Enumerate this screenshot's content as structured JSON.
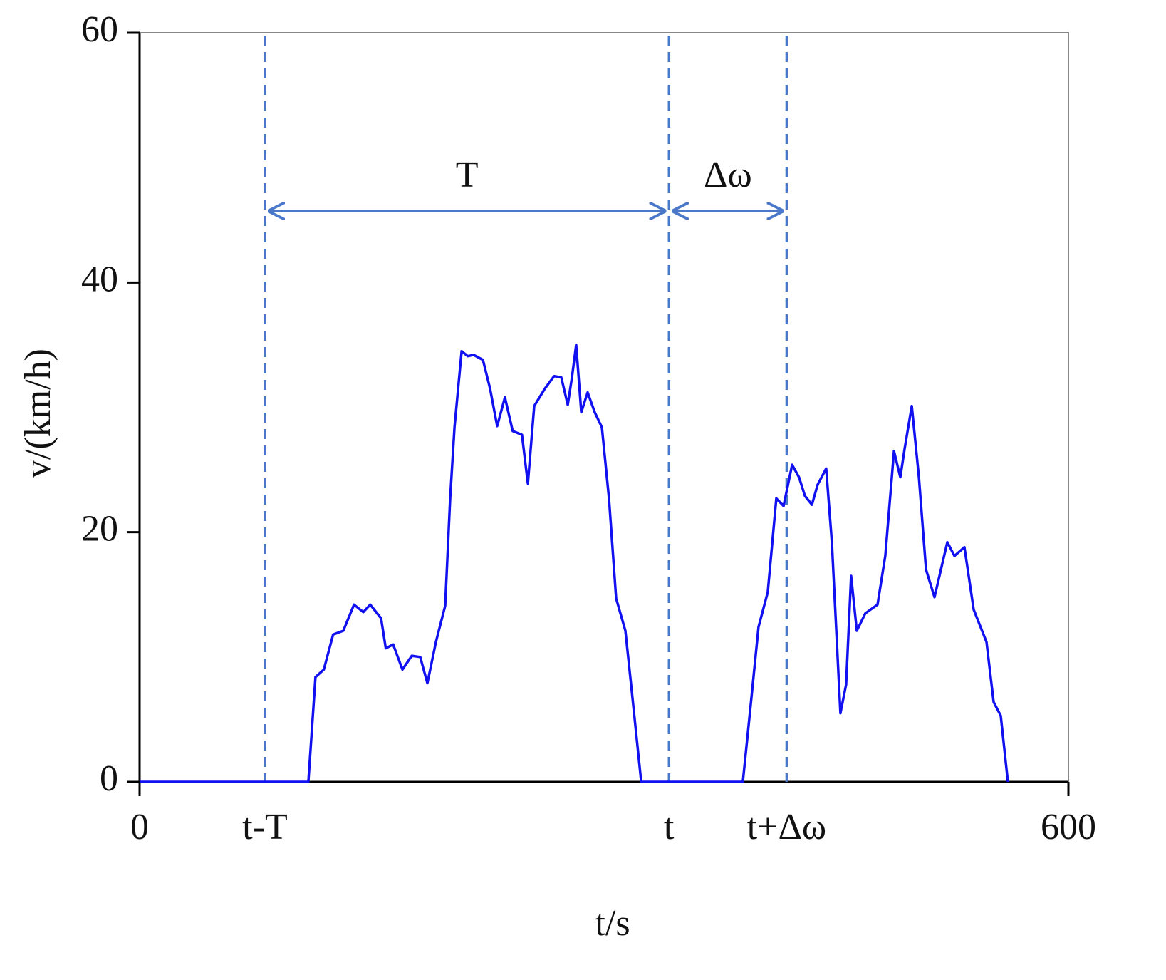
{
  "chart_data": {
    "type": "line",
    "xlabel": "t/s",
    "ylabel": "v/(km/h)",
    "xlim": [
      0,
      600
    ],
    "ylim": [
      0,
      60
    ],
    "xticks": [
      0,
      {
        "value": 81,
        "label": "t-T"
      },
      {
        "value": 342,
        "label": "t"
      },
      {
        "value": 418,
        "label": "t+Δω"
      },
      600
    ],
    "yticks": [
      0,
      20,
      40,
      60
    ],
    "annotations": [
      "T",
      "Δω"
    ],
    "series": [
      {
        "color": "#1010f0",
        "x": [
          0,
          109,
          113.6,
          119,
          125,
          131.6,
          138.5,
          144.5,
          149,
          156,
          159,
          163.8,
          169.8,
          175.8,
          181.3,
          185.9,
          191.4,
          197.4,
          200.6,
          203.4,
          208,
          212,
          215.8,
          221.8,
          226.4,
          231,
          236,
          241,
          247,
          250.8,
          254.9,
          261.8,
          267.8,
          272.4,
          276.6,
          279.3,
          282,
          285.3,
          289.4,
          294,
          298.6,
          303.2,
          307.8,
          313.8,
          317.5,
          324,
          389.7,
          395.2,
          399.8,
          405.8,
          411.3,
          416,
          421.5,
          426,
          429.8,
          434.3,
          438,
          443.5,
          447.2,
          452.7,
          456.4,
          459.6,
          463.3,
          468.8,
          476.7,
          481.7,
          487.3,
          491.4,
          494.2,
          498.8,
          503.4,
          508,
          513.5,
          521.8,
          526.4,
          532.8,
          538.8,
          547.1,
          551.7,
          556.3,
          560.9
        ],
        "values": [
          0,
          0,
          8.4,
          9,
          11.8,
          12.1,
          14.2,
          13.6,
          14.2,
          13.1,
          10.7,
          11,
          9,
          10.1,
          10,
          7.9,
          11.2,
          14.1,
          22.7,
          28.4,
          34.5,
          34.1,
          34.2,
          33.8,
          31.5,
          28.5,
          30.8,
          28.1,
          27.8,
          23.9,
          30.1,
          31.5,
          32.5,
          32.4,
          30.2,
          32.4,
          35,
          29.6,
          31.2,
          29.6,
          28.4,
          22.7,
          14.7,
          12.1,
          7.8,
          0,
          0,
          6.7,
          12.4,
          15.2,
          22.7,
          22.1,
          25.4,
          24.4,
          22.9,
          22.2,
          23.8,
          25.1,
          19.2,
          5.5,
          7.8,
          16.5,
          12.1,
          13.5,
          14.2,
          18.1,
          26.5,
          24.4,
          26.7,
          30.1,
          24.4,
          17,
          14.8,
          19.2,
          18.1,
          18.8,
          13.8,
          11.2,
          6.4,
          5.3,
          0
        ]
      }
    ]
  }
}
